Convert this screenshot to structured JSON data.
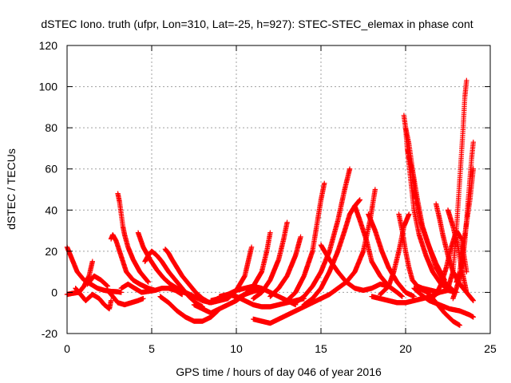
{
  "chart_data": {
    "type": "scatter",
    "title": "dSTEC Iono. truth (ufpr, Lon=310, Lat=-25, h=927): STEC-STEC_elemax in phase cont",
    "xlabel": "GPS time / hours of day 046 of year 2016",
    "ylabel": "dSTEC  / TECUs",
    "xlim": [
      0,
      25
    ],
    "ylim": [
      -20,
      120
    ],
    "xticks": [
      "0",
      "5",
      "10",
      "15",
      "20",
      "25"
    ],
    "yticks": [
      "-20",
      "0",
      "20",
      "40",
      "60",
      "80",
      "100",
      "120"
    ],
    "grid": true,
    "marker": "+",
    "color": "#ff0000",
    "series": [
      {
        "x": [
          0.0,
          0.3,
          0.6,
          1.0,
          1.4,
          1.8,
          2.2,
          2.6,
          3.0,
          3.2
        ],
        "y": [
          22,
          16,
          10,
          6,
          4,
          2,
          1,
          0.5,
          0.3,
          0
        ]
      },
      {
        "x": [
          0.0,
          0.3,
          0.7,
          1.0,
          1.3,
          1.5
        ],
        "y": [
          -1,
          -0.5,
          0,
          3,
          8,
          15
        ]
      },
      {
        "x": [
          0.5,
          0.8,
          1.1,
          1.5,
          1.9,
          2.2,
          2.5,
          2.6
        ],
        "y": [
          2,
          -1,
          -4,
          -1,
          -3,
          -6,
          -8,
          -4
        ]
      },
      {
        "x": [
          1.2,
          1.6,
          2.0,
          2.4
        ],
        "y": [
          4,
          8,
          6,
          3
        ]
      },
      {
        "x": [
          2.5,
          2.7,
          3.0,
          3.4,
          3.8,
          4.2,
          4.5
        ],
        "y": [
          0,
          -2,
          -5,
          -6,
          -5,
          -4,
          -3
        ]
      },
      {
        "x": [
          2.6,
          2.7,
          2.9,
          3.1,
          3.3,
          3.5,
          3.9,
          4.3,
          4.8,
          5.2
        ],
        "y": [
          26,
          28,
          25,
          20,
          15,
          10,
          6,
          4,
          2,
          1
        ]
      },
      {
        "x": [
          3.0,
          3.1,
          3.2,
          3.3,
          3.4,
          3.6,
          3.9,
          4.3,
          4.8
        ],
        "y": [
          48,
          44,
          38,
          32,
          28,
          22,
          16,
          10,
          5
        ]
      },
      {
        "x": [
          3.2,
          3.6,
          4.0,
          4.4,
          4.8,
          5.2,
          5.6,
          6.0,
          6.4,
          6.8
        ],
        "y": [
          2,
          4,
          2,
          0,
          0.5,
          1,
          2,
          2,
          1,
          -1
        ]
      },
      {
        "x": [
          4.2,
          4.5,
          4.9,
          5.3,
          5.7,
          6.1,
          6.5,
          6.9,
          7.2
        ],
        "y": [
          29,
          22,
          16,
          11,
          7,
          4,
          2,
          0,
          -1
        ]
      },
      {
        "x": [
          4.6,
          4.8,
          5.0,
          5.3,
          5.6,
          6.0,
          6.4,
          6.8,
          7.2,
          7.6,
          8.0
        ],
        "y": [
          15,
          18,
          20,
          18,
          15,
          10,
          6,
          2,
          -2,
          -5,
          -7
        ]
      },
      {
        "x": [
          5.8,
          6.0,
          6.2,
          6.5,
          6.8,
          7.2,
          7.6,
          8.0,
          8.4
        ],
        "y": [
          21,
          19,
          16,
          12,
          8,
          4,
          0,
          -3,
          -5
        ]
      },
      {
        "x": [
          5.5,
          6.0,
          6.5,
          7.0,
          7.5,
          8.0,
          8.5,
          8.9
        ],
        "y": [
          -2,
          -5,
          -9,
          -12,
          -14,
          -14,
          -12,
          -9
        ]
      },
      {
        "x": [
          7.0,
          7.5,
          8.0,
          8.5,
          9.0,
          9.5,
          10.0,
          10.5,
          10.9
        ],
        "y": [
          0,
          -2,
          -4,
          -5,
          -4,
          -3,
          1,
          8,
          22
        ]
      },
      {
        "x": [
          7.5,
          8.0,
          8.5,
          9.0,
          9.5,
          10.0,
          10.5,
          11.0,
          11.5
        ],
        "y": [
          -6,
          -8,
          -10,
          -8,
          -6,
          -4,
          -1,
          0.5,
          1.5
        ]
      },
      {
        "x": [
          8.5,
          9.0,
          9.5,
          10.0,
          10.5,
          11.0,
          11.5,
          12.0,
          12.5,
          13.0,
          13.5
        ],
        "y": [
          -4,
          -3,
          -1,
          1,
          2,
          3,
          2,
          0,
          -2,
          -4,
          -6
        ]
      },
      {
        "x": [
          9.0,
          9.5,
          10.0,
          10.5,
          11.0,
          11.5,
          12.0,
          12.5,
          13.0,
          13.5,
          14.0
        ],
        "y": [
          -2,
          -1,
          -2,
          -4,
          -6,
          -7,
          -7,
          -6,
          -5,
          -4,
          -3
        ]
      },
      {
        "x": [
          10.0,
          10.5,
          11.0,
          11.5,
          11.8,
          12.0
        ],
        "y": [
          -3,
          -1,
          3,
          10,
          20,
          29
        ]
      },
      {
        "x": [
          11.0,
          11.5,
          12.0,
          12.5,
          12.8,
          13.0
        ],
        "y": [
          -3,
          0,
          6,
          16,
          26,
          34
        ]
      },
      {
        "x": [
          11.0,
          11.5,
          12.0,
          12.5,
          13.0,
          13.5,
          14.0,
          14.5,
          15.0
        ],
        "y": [
          -13,
          -14,
          -15,
          -13,
          -11,
          -9,
          -7,
          -5,
          -3
        ]
      },
      {
        "x": [
          12.0,
          12.5,
          13.0,
          13.5,
          13.8
        ],
        "y": [
          -2,
          2,
          8,
          18,
          27
        ]
      },
      {
        "x": [
          13.0,
          13.5,
          14.0,
          14.5,
          14.8,
          15.0,
          15.2
        ],
        "y": [
          -4,
          0,
          8,
          20,
          35,
          45,
          53
        ]
      },
      {
        "x": [
          13.5,
          14.0,
          14.5,
          15.0,
          15.5,
          16.0,
          16.4,
          16.7
        ],
        "y": [
          -5,
          -2,
          3,
          10,
          20,
          35,
          50,
          60
        ]
      },
      {
        "x": [
          14.0,
          14.5,
          15.0,
          15.5,
          16.0,
          16.4,
          16.7,
          17.0,
          17.3
        ],
        "y": [
          -6,
          -3,
          2,
          10,
          20,
          30,
          38,
          42,
          45
        ]
      },
      {
        "x": [
          15.0,
          15.5,
          16.0,
          16.5,
          17.0,
          17.5,
          17.9,
          18.2
        ],
        "y": [
          -3,
          -1,
          2,
          5,
          10,
          20,
          35,
          50
        ]
      },
      {
        "x": [
          15.0,
          15.5,
          16.0,
          16.5,
          17.0,
          17.5,
          18.0,
          18.5,
          19.0
        ],
        "y": [
          23,
          16,
          10,
          5,
          2,
          1,
          2,
          4,
          3
        ]
      },
      {
        "x": [
          17.0,
          17.3,
          17.7,
          18.0,
          18.5,
          19.0,
          19.5,
          19.8
        ],
        "y": [
          42,
          35,
          25,
          15,
          8,
          3,
          0,
          -2
        ]
      },
      {
        "x": [
          17.8,
          18.2,
          18.6,
          19.0,
          19.5,
          20.0,
          20.5
        ],
        "y": [
          38,
          30,
          20,
          12,
          5,
          0,
          -2
        ]
      },
      {
        "x": [
          18.0,
          18.5,
          19.0,
          19.5,
          20.0,
          20.5,
          21.0,
          21.5,
          22.0,
          22.5,
          23.0
        ],
        "y": [
          -2,
          -3,
          -4,
          -5,
          -5,
          -4,
          -3,
          -2,
          0,
          1,
          0
        ]
      },
      {
        "x": [
          18.5,
          19.0,
          19.3,
          19.6,
          19.9,
          20.2
        ],
        "y": [
          -1,
          3,
          10,
          20,
          32,
          38
        ]
      },
      {
        "x": [
          19.6,
          19.8,
          20.0,
          20.2,
          20.4,
          20.7,
          21.0,
          21.5,
          22.0
        ],
        "y": [
          38,
          30,
          20,
          12,
          6,
          3,
          2,
          1,
          0
        ]
      },
      {
        "x": [
          19.9,
          20.0,
          20.1,
          20.3,
          20.5,
          20.8,
          21.2,
          21.6,
          22.1,
          22.6
        ],
        "y": [
          86,
          80,
          70,
          55,
          40,
          28,
          18,
          10,
          4,
          1
        ]
      },
      {
        "x": [
          20.0,
          20.2,
          20.4,
          20.7,
          21.0,
          21.4,
          21.8,
          22.3,
          22.8
        ],
        "y": [
          80,
          72,
          60,
          45,
          32,
          22,
          12,
          5,
          1
        ]
      },
      {
        "x": [
          20.1,
          20.4,
          20.6,
          20.9,
          21.3,
          21.8,
          22.3
        ],
        "y": [
          70,
          58,
          46,
          34,
          24,
          14,
          6
        ]
      },
      {
        "x": [
          20.5,
          20.9,
          21.4,
          22.0,
          22.6,
          23.2,
          23.8,
          24.0
        ],
        "y": [
          2,
          -1,
          -4,
          -6,
          -8,
          -9,
          -11,
          -12
        ]
      },
      {
        "x": [
          20.8,
          21.3,
          21.8,
          22.3,
          22.8,
          23.2
        ],
        "y": [
          2,
          0,
          -5,
          -10,
          -14,
          -16
        ]
      },
      {
        "x": [
          21.5,
          21.8,
          22.1,
          22.4,
          22.7,
          23.0,
          23.3,
          23.6
        ],
        "y": [
          -3,
          -1,
          4,
          12,
          22,
          30,
          26,
          10
        ]
      },
      {
        "x": [
          21.8,
          22.0,
          22.2,
          22.5,
          22.8,
          23.2,
          23.6,
          24.0
        ],
        "y": [
          43,
          36,
          28,
          18,
          10,
          4,
          0,
          -4
        ]
      },
      {
        "x": [
          22.5,
          22.8,
          23.1,
          23.3,
          23.5,
          23.6
        ],
        "y": [
          40,
          32,
          22,
          12,
          4,
          0
        ]
      },
      {
        "x": [
          22.5,
          22.8,
          23.0,
          23.2,
          23.4,
          23.5,
          23.6
        ],
        "y": [
          2,
          10,
          30,
          55,
          80,
          95,
          103
        ]
      },
      {
        "x": [
          22.8,
          23.0,
          23.3,
          23.5,
          23.7,
          23.9,
          24.0
        ],
        "y": [
          -3,
          2,
          10,
          25,
          45,
          65,
          73
        ]
      },
      {
        "x": [
          23.0,
          23.2,
          23.5,
          23.8,
          24.0
        ],
        "y": [
          5,
          10,
          28,
          45,
          60
        ]
      }
    ]
  }
}
